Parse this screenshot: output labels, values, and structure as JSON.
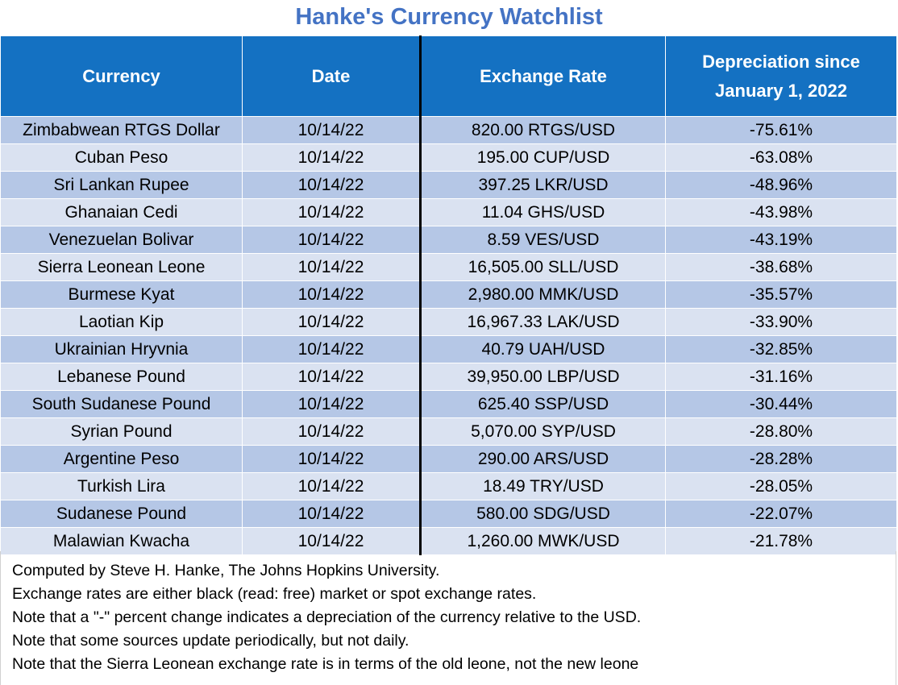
{
  "chart_data": {
    "type": "table",
    "title": "Hanke's Currency Watchlist",
    "columns": [
      "Currency",
      "Date",
      "Exchange Rate",
      "Depreciation since January 1, 2022"
    ],
    "header_lines": {
      "currency": "Currency",
      "date": "Date",
      "rate": "Exchange Rate",
      "depreciation_line1": "Depreciation since",
      "depreciation_line2": "January 1, 2022"
    },
    "rows": [
      [
        "Zimbabwean RTGS Dollar",
        "10/14/22",
        "820.00 RTGS/USD",
        "-75.61%"
      ],
      [
        "Cuban Peso",
        "10/14/22",
        "195.00 CUP/USD",
        "-63.08%"
      ],
      [
        "Sri Lankan Rupee",
        "10/14/22",
        "397.25 LKR/USD",
        "-48.96%"
      ],
      [
        "Ghanaian Cedi",
        "10/14/22",
        "11.04 GHS/USD",
        "-43.98%"
      ],
      [
        "Venezuelan Bolivar",
        "10/14/22",
        "8.59 VES/USD",
        "-43.19%"
      ],
      [
        "Sierra Leonean Leone",
        "10/14/22",
        "16,505.00 SLL/USD",
        "-38.68%"
      ],
      [
        "Burmese Kyat",
        "10/14/22",
        "2,980.00 MMK/USD",
        "-35.57%"
      ],
      [
        "Laotian Kip",
        "10/14/22",
        "16,967.33 LAK/USD",
        "-33.90%"
      ],
      [
        "Ukrainian Hryvnia",
        "10/14/22",
        "40.79 UAH/USD",
        "-32.85%"
      ],
      [
        "Lebanese Pound",
        "10/14/22",
        "39,950.00 LBP/USD",
        "-31.16%"
      ],
      [
        "South Sudanese Pound",
        "10/14/22",
        "625.40 SSP/USD",
        "-30.44%"
      ],
      [
        "Syrian Pound",
        "10/14/22",
        "5,070.00 SYP/USD",
        "-28.80%"
      ],
      [
        "Argentine Peso",
        "10/14/22",
        "290.00 ARS/USD",
        "-28.28%"
      ],
      [
        "Turkish Lira",
        "10/14/22",
        "18.49 TRY/USD",
        "-28.05%"
      ],
      [
        "Sudanese Pound",
        "10/14/22",
        "580.00 SDG/USD",
        "-22.07%"
      ],
      [
        "Malawian Kwacha",
        "10/14/22",
        "1,260.00 MWK/USD",
        "-21.78%"
      ]
    ],
    "notes": [
      "Computed by Steve H. Hanke, The Johns Hopkins University.",
      "Exchange rates are either black (read: free) market or spot exchange rates.",
      "Note that a \"-\" percent change indicates a depreciation of the currency relative to the USD.",
      "Note that some sources update periodically, but not daily.",
      "Note that the Sierra Leonean exchange rate is in terms of the old leone, not the new leone"
    ]
  },
  "colors": {
    "title": "#4473c4",
    "header_bg": "#1471c2",
    "row_dark": "#b5c7e6",
    "row_light": "#dae2f1"
  }
}
